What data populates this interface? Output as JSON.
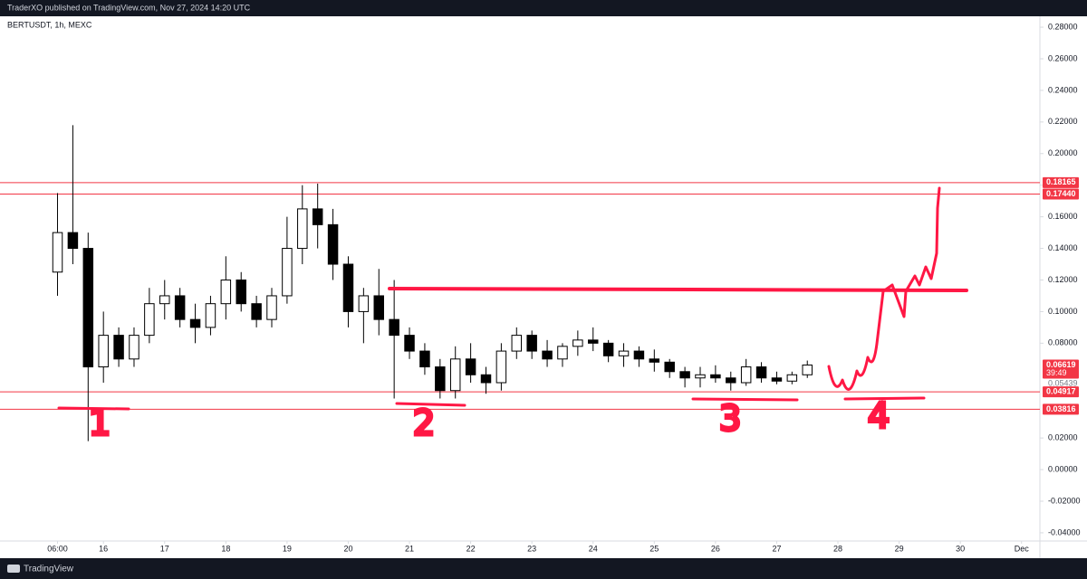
{
  "chart_data": {
    "type": "candlestick",
    "header": "TraderXO published on TradingView.com, Nov 27, 2024 14:20 UTC",
    "title": "BERTUSDT, 1h, MEXC",
    "footer": "TradingView",
    "up_color": "#ffffff",
    "down_color": "#000000",
    "line_color": "#f23645",
    "grid": false,
    "xlim": [
      14.31,
      31.3
    ],
    "xticks": [
      {
        "value": 15.25,
        "label": "06:00"
      },
      16,
      17,
      18,
      19,
      20,
      21,
      22,
      23,
      24,
      25,
      26,
      27,
      28,
      29,
      30,
      {
        "value": 31,
        "label": "Dec"
      }
    ],
    "ylim": [
      -0.0452,
      0.2869
    ],
    "yticks": [
      {
        "value": 0.28,
        "label": "0.28000"
      },
      {
        "value": 0.26,
        "label": "0.26000"
      },
      {
        "value": 0.24,
        "label": "0.24000"
      },
      {
        "value": 0.22,
        "label": "0.22000"
      },
      {
        "value": 0.2,
        "label": "0.20000"
      },
      {
        "value": 0.18,
        "label": "0.18000"
      },
      {
        "value": 0.16,
        "label": "0.16000"
      },
      {
        "value": 0.14,
        "label": "0.14000"
      },
      {
        "value": 0.12,
        "label": "0.12000"
      },
      {
        "value": 0.1,
        "label": "0.10000"
      },
      {
        "value": 0.08,
        "label": "0.08000"
      },
      {
        "value": 0.02,
        "label": "0.02000"
      },
      {
        "value": 0,
        "label": "0.00000"
      },
      {
        "value": -0.02,
        "label": "-0.02000"
      },
      {
        "value": -0.04,
        "label": "-0.04000"
      }
    ],
    "price_lines": [
      {
        "value": 0.18165,
        "label": "0.18165"
      },
      {
        "value": 0.1744,
        "label": "0.17440"
      },
      {
        "value": 0.04917,
        "label": "0.04917"
      },
      {
        "value": 0.03816,
        "label": "0.03816"
      }
    ],
    "marker": {
      "value": 0.05439,
      "label": "0.05439"
    },
    "last_price": {
      "value": 0.06619,
      "label": "0.06619",
      "countdown": "39:49"
    },
    "annotations": [
      "1",
      "2",
      "3",
      "4"
    ],
    "x": [
      15.25,
      15.5,
      15.75,
      16,
      16.25,
      16.5,
      16.75,
      17,
      17.25,
      17.5,
      17.75,
      18,
      18.25,
      18.5,
      18.75,
      19,
      19.25,
      19.5,
      19.75,
      20,
      20.25,
      20.5,
      20.75,
      21,
      21.25,
      21.5,
      21.75,
      22,
      22.25,
      22.5,
      22.75,
      23,
      23.25,
      23.5,
      23.75,
      24,
      24.25,
      24.5,
      24.75,
      25,
      25.25,
      25.5,
      25.75,
      26,
      26.25,
      26.5,
      26.75,
      27,
      27.25,
      27.5
    ],
    "open": [
      0.125,
      0.15,
      0.14,
      0.065,
      0.085,
      0.07,
      0.085,
      0.105,
      0.11,
      0.095,
      0.09,
      0.105,
      0.12,
      0.105,
      0.095,
      0.11,
      0.14,
      0.165,
      0.155,
      0.13,
      0.1,
      0.11,
      0.095,
      0.085,
      0.075,
      0.065,
      0.05,
      0.07,
      0.06,
      0.055,
      0.075,
      0.085,
      0.075,
      0.07,
      0.078,
      0.082,
      0.08,
      0.072,
      0.075,
      0.07,
      0.068,
      0.062,
      0.058,
      0.06,
      0.058,
      0.055,
      0.065,
      0.058,
      0.056,
      0.06
    ],
    "high": [
      0.175,
      0.218,
      0.15,
      0.1,
      0.09,
      0.09,
      0.115,
      0.12,
      0.115,
      0.105,
      0.11,
      0.135,
      0.125,
      0.11,
      0.115,
      0.16,
      0.18,
      0.181,
      0.165,
      0.135,
      0.115,
      0.127,
      0.12,
      0.09,
      0.08,
      0.07,
      0.078,
      0.08,
      0.065,
      0.08,
      0.09,
      0.088,
      0.082,
      0.08,
      0.088,
      0.09,
      0.082,
      0.08,
      0.078,
      0.076,
      0.07,
      0.065,
      0.065,
      0.066,
      0.062,
      0.07,
      0.068,
      0.062,
      0.062,
      0.069
    ],
    "low": [
      0.11,
      0.13,
      0.018,
      0.055,
      0.065,
      0.065,
      0.08,
      0.095,
      0.09,
      0.08,
      0.085,
      0.095,
      0.1,
      0.09,
      0.09,
      0.105,
      0.13,
      0.14,
      0.12,
      0.09,
      0.08,
      0.085,
      0.045,
      0.07,
      0.06,
      0.045,
      0.045,
      0.055,
      0.048,
      0.05,
      0.07,
      0.07,
      0.065,
      0.065,
      0.072,
      0.075,
      0.068,
      0.065,
      0.065,
      0.062,
      0.058,
      0.052,
      0.052,
      0.055,
      0.05,
      0.053,
      0.055,
      0.054,
      0.054,
      0.058
    ],
    "close": [
      0.15,
      0.14,
      0.065,
      0.085,
      0.07,
      0.085,
      0.105,
      0.11,
      0.095,
      0.09,
      0.105,
      0.12,
      0.105,
      0.095,
      0.11,
      0.14,
      0.165,
      0.155,
      0.13,
      0.1,
      0.11,
      0.095,
      0.085,
      0.075,
      0.065,
      0.05,
      0.07,
      0.06,
      0.055,
      0.075,
      0.085,
      0.075,
      0.07,
      0.078,
      0.082,
      0.08,
      0.072,
      0.075,
      0.07,
      0.068,
      0.062,
      0.058,
      0.06,
      0.058,
      0.055,
      0.065,
      0.058,
      0.056,
      0.06,
      0.06619
    ]
  }
}
